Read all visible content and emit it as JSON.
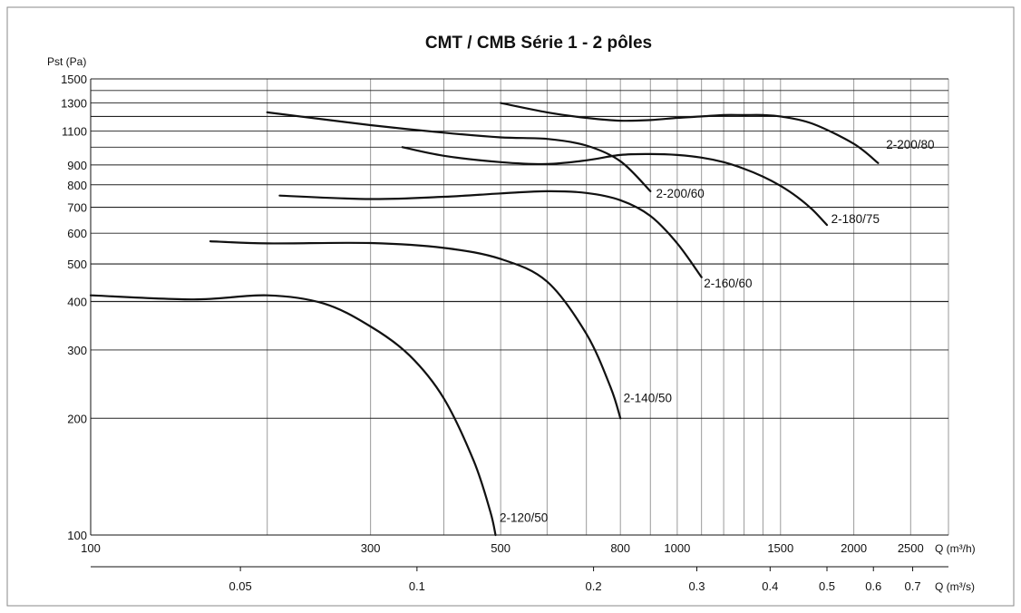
{
  "chart_data": {
    "type": "line",
    "title": "CMT / CMB Série 1 - 2 pôles",
    "ylabel": "Pst (Pa)",
    "xlabel_top": "Q (m³/h)",
    "xlabel_bottom": "Q (m³/s)",
    "x_scale": "log",
    "y_scale": "log",
    "xlim": [
      100,
      2900
    ],
    "ylim": [
      100,
      1500
    ],
    "y_tick_labels": [
      "100",
      "200",
      "300",
      "400",
      "500",
      "600",
      "700",
      "800",
      "900",
      "1100",
      "1300",
      "1500"
    ],
    "y_tick_values": [
      100,
      200,
      300,
      400,
      500,
      600,
      700,
      800,
      900,
      1100,
      1300,
      1500
    ],
    "y_grid_values": [
      100,
      200,
      300,
      400,
      500,
      600,
      700,
      800,
      900,
      1000,
      1100,
      1200,
      1300,
      1400,
      1500
    ],
    "y_major_grid": [
      400,
      500,
      700,
      1200
    ],
    "x_grid_values": [
      100,
      200,
      300,
      400,
      500,
      600,
      700,
      800,
      900,
      1000,
      1100,
      1200,
      1300,
      1400,
      1500,
      2000,
      2500,
      2900
    ],
    "x_top_tick_labels": [
      "100",
      "300",
      "500",
      "800",
      "1000",
      "1500",
      "2000",
      "2500"
    ],
    "x_top_tick_values": [
      100,
      300,
      500,
      800,
      1000,
      1500,
      2000,
      2500
    ],
    "x_bottom_tick_labels": [
      "0.05",
      "0.1",
      "0.2",
      "0.3",
      "0.4",
      "0.5",
      "0.6",
      "0.7"
    ],
    "x_bottom_tick_values": [
      0.05,
      0.1,
      0.2,
      0.3,
      0.4,
      0.5,
      0.6,
      0.7
    ],
    "series": [
      {
        "name": "2-120/50",
        "x": [
          100,
          150,
          200,
          250,
          300,
          350,
          400,
          450,
          480,
          490
        ],
        "y": [
          415,
          405,
          415,
          395,
          345,
          290,
          225,
          155,
          115,
          100
        ],
        "label_at": [
          498,
          108
        ]
      },
      {
        "name": "2-140/50",
        "x": [
          160,
          200,
          300,
          400,
          500,
          600,
          700,
          770,
          800
        ],
        "y": [
          572,
          565,
          566,
          550,
          515,
          450,
          330,
          240,
          200
        ],
        "label_at": [
          810,
          220
        ]
      },
      {
        "name": "2-160/60",
        "x": [
          210,
          300,
          400,
          500,
          600,
          700,
          800,
          900,
          1000,
          1100
        ],
        "y": [
          750,
          735,
          745,
          760,
          770,
          762,
          730,
          665,
          565,
          462
        ],
        "label_at": [
          1110,
          435
        ]
      },
      {
        "name": "2-180/75",
        "x": [
          340,
          400,
          500,
          600,
          700,
          800,
          900,
          1000,
          1100,
          1200,
          1300,
          1400,
          1500,
          1600,
          1700,
          1800
        ],
        "y": [
          1000,
          950,
          915,
          905,
          925,
          955,
          960,
          955,
          940,
          915,
          880,
          840,
          795,
          745,
          690,
          630
        ],
        "label_at": [
          1830,
          638
        ]
      },
      {
        "name": "2-200/60",
        "x": [
          200,
          300,
          400,
          500,
          600,
          700,
          800,
          900
        ],
        "y": [
          1230,
          1140,
          1090,
          1060,
          1050,
          1010,
          920,
          770
        ],
        "label_at": [
          920,
          740
        ]
      },
      {
        "name": "2-200/80",
        "x": [
          500,
          600,
          700,
          800,
          900,
          1000,
          1100,
          1200,
          1300,
          1400,
          1500,
          1700,
          2000,
          2200
        ],
        "y": [
          1300,
          1230,
          1190,
          1170,
          1175,
          1190,
          1200,
          1210,
          1210,
          1210,
          1200,
          1150,
          1020,
          910
        ],
        "label_at": [
          2270,
          990
        ]
      }
    ]
  }
}
